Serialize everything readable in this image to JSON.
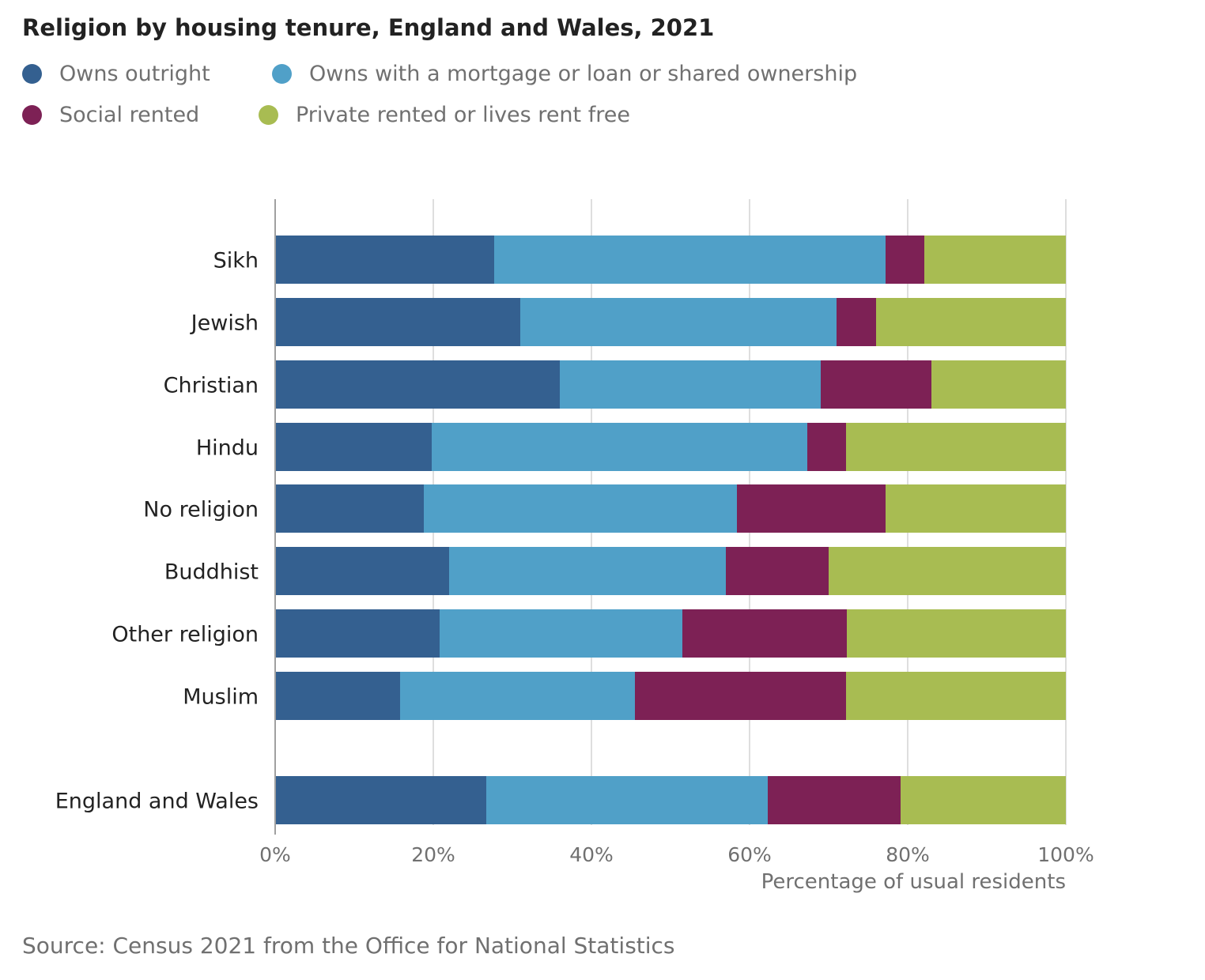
{
  "chart_data": {
    "type": "bar",
    "orientation": "horizontal",
    "stacked": true,
    "title": "Religion by housing tenure, England and Wales, 2021",
    "xlabel": "Percentage of usual residents",
    "ylabel": "",
    "xlim": [
      0,
      100
    ],
    "xticks": [
      "0%",
      "20%",
      "40%",
      "60%",
      "80%",
      "100%"
    ],
    "grid": true,
    "legend_position": "top-left",
    "categories": [
      "Sikh",
      "Jewish",
      "Christian",
      "Hindu",
      "No religion",
      "Buddhist",
      "Other religion",
      "Muslim",
      "England and Wales"
    ],
    "series": [
      {
        "name": "Owns outright",
        "color": "#346090",
        "values": [
          27.7,
          31.0,
          36.0,
          19.8,
          18.8,
          22.0,
          20.8,
          15.8,
          26.7
        ]
      },
      {
        "name": "Owns with a mortgage or loan or shared ownership",
        "color": "#50a0c8",
        "values": [
          49.5,
          40.0,
          33.0,
          47.5,
          39.6,
          35.0,
          30.7,
          29.7,
          35.6
        ]
      },
      {
        "name": "Social rented",
        "color": "#7d2155",
        "values": [
          4.9,
          5.0,
          14.0,
          4.9,
          18.8,
          13.0,
          20.8,
          26.7,
          16.8
        ]
      },
      {
        "name": "Private rented or lives rent free",
        "color": "#a8bc52",
        "values": [
          17.9,
          24.0,
          17.0,
          27.8,
          22.8,
          30.0,
          27.7,
          27.8,
          20.9
        ]
      }
    ],
    "source": "Source: Census 2021 from the Office for National Statistics"
  }
}
